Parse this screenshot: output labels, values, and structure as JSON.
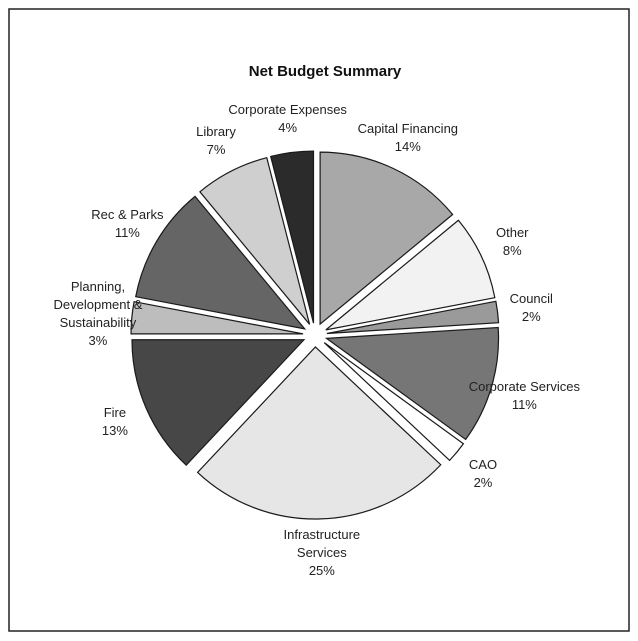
{
  "chart_data": {
    "type": "pie",
    "title": "Net Budget  Summary",
    "categories": [
      "Capital Financing",
      "Other",
      "Council",
      "Corporate Services",
      "CAO",
      "Infrastructure Services",
      "Fire",
      "Planning, Development & Sustainability",
      "Rec & Parks",
      "Library",
      "Corporate Expenses"
    ],
    "values": [
      14,
      8,
      2,
      11,
      2,
      25,
      13,
      3,
      11,
      7,
      4
    ],
    "value_labels": [
      "14%",
      "8%",
      "2%",
      "11%",
      "2%",
      "25%",
      "13%",
      "3%",
      "11%",
      "7%",
      "4%"
    ],
    "colors": [
      "#a8a8a8",
      "#f2f2f2",
      "#9a9a9a",
      "#767676",
      "#ffffff",
      "#e6e6e6",
      "#474747",
      "#bdbdbd",
      "#656565",
      "#cfcfcf",
      "#2b2b2b"
    ]
  }
}
